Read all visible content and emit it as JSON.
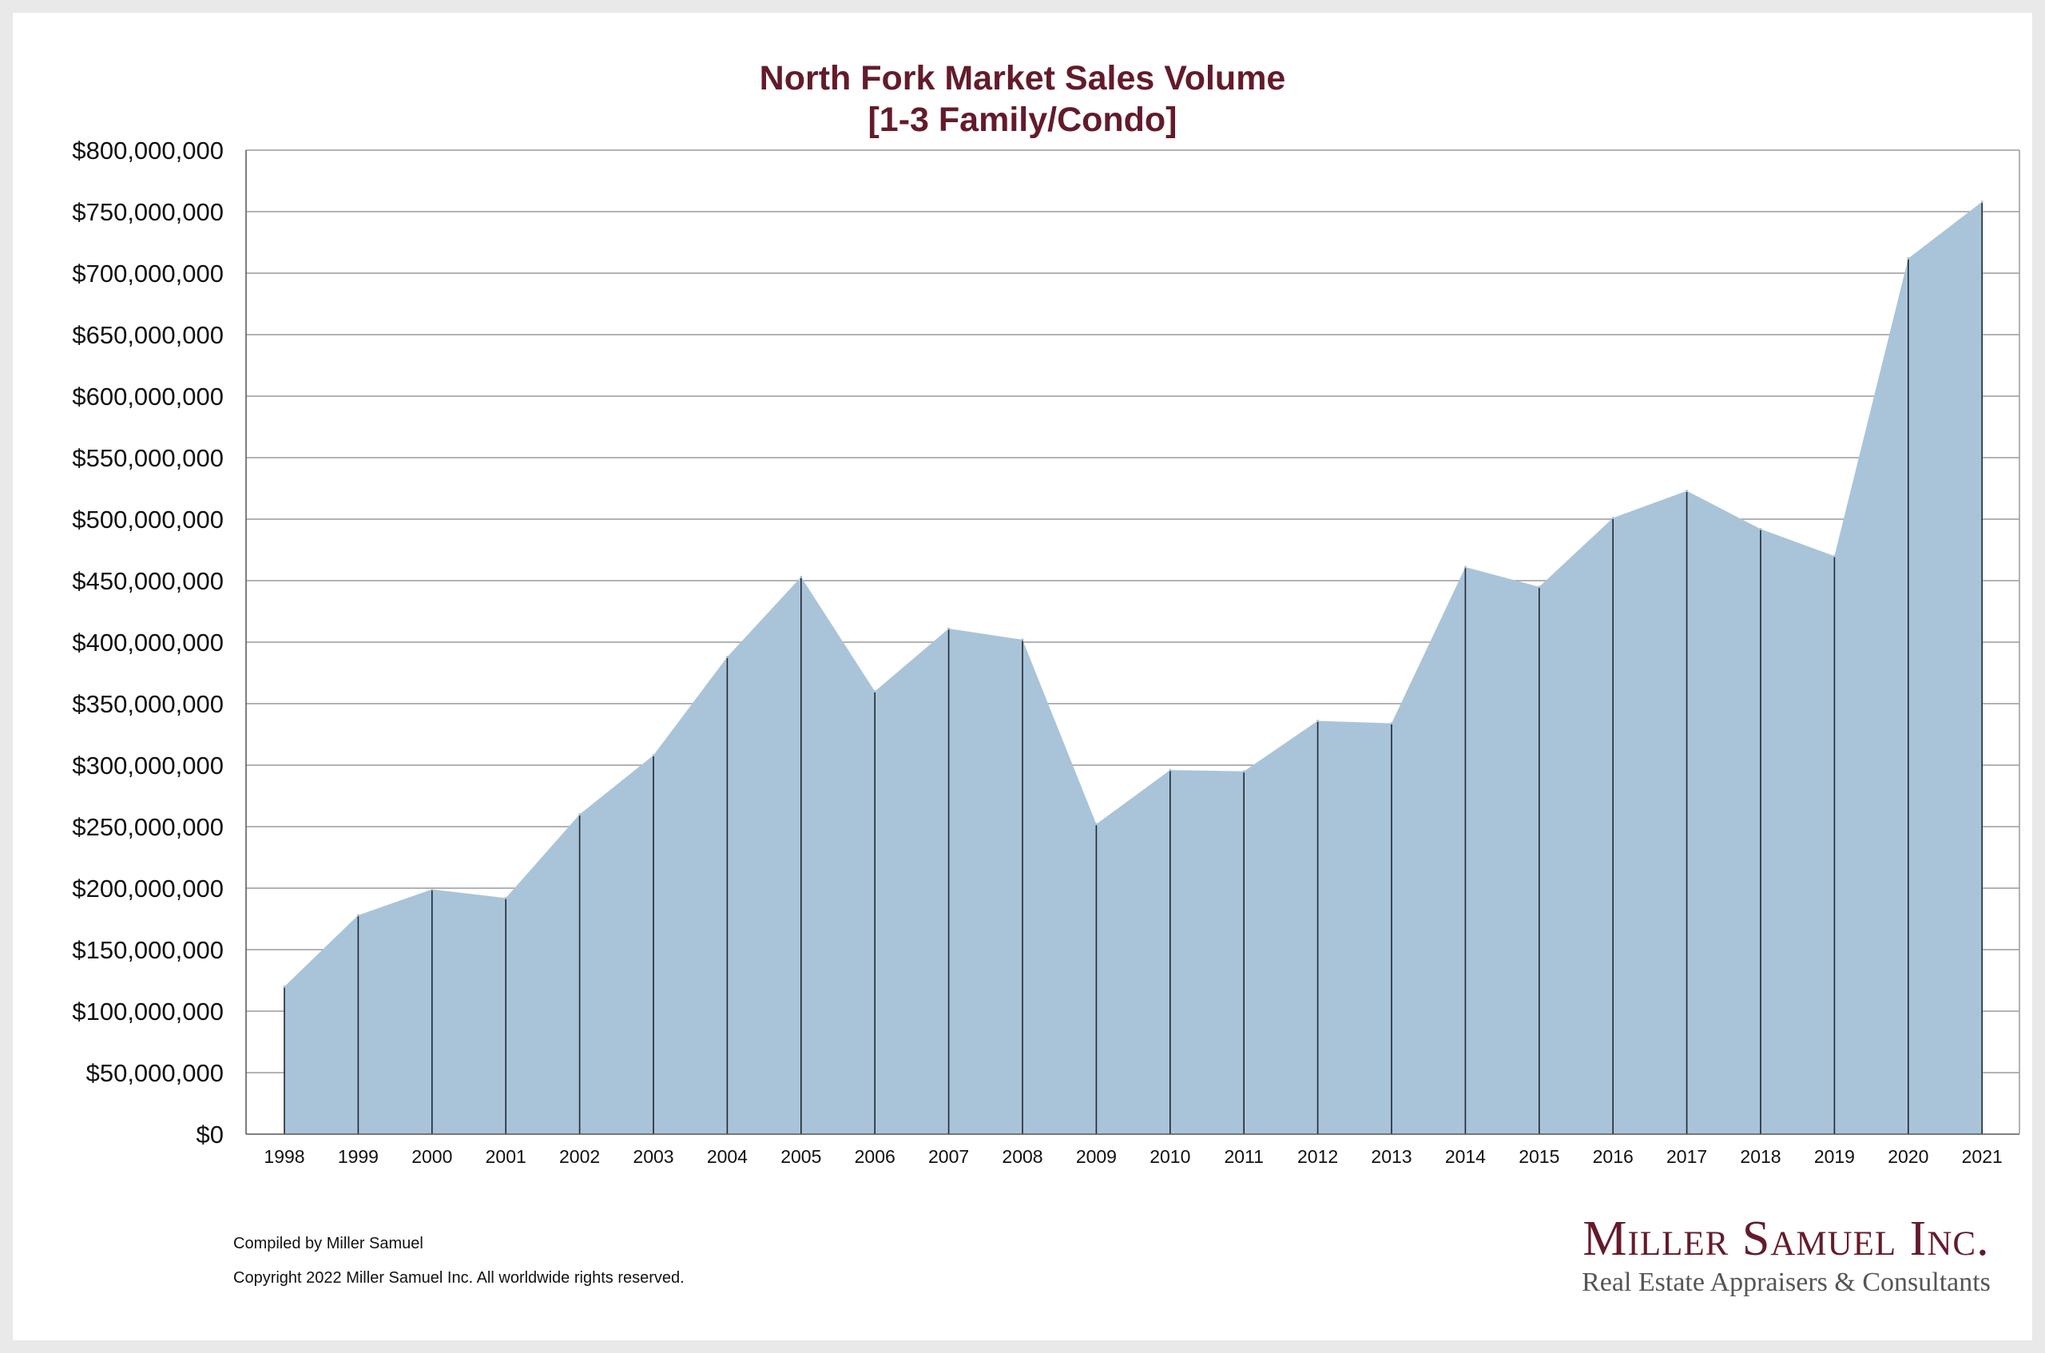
{
  "colors": {
    "title": "#631b2b",
    "fill": "#a9c4d8",
    "grid": "#9a9a9a",
    "drop": "#1f2733",
    "axis": "#555555"
  },
  "chart_data": {
    "type": "area",
    "title_line1": "North Fork Market Sales Volume",
    "title_line2": "[1-3 Family/Condo]",
    "xlabel": "",
    "ylabel": "",
    "ylim": [
      0,
      800000000
    ],
    "ytick_step": 50000000,
    "grid": true,
    "legend": "none",
    "categories": [
      "1998",
      "1999",
      "2000",
      "2001",
      "2002",
      "2003",
      "2004",
      "2005",
      "2006",
      "2007",
      "2008",
      "2009",
      "2010",
      "2011",
      "2012",
      "2013",
      "2014",
      "2015",
      "2016",
      "2017",
      "2018",
      "2019",
      "2020",
      "2021"
    ],
    "series": [
      {
        "name": "Sales Volume",
        "values": [
          120000000,
          178000000,
          199000000,
          192000000,
          260000000,
          308000000,
          388000000,
          453000000,
          360000000,
          411000000,
          402000000,
          252000000,
          296000000,
          295000000,
          336000000,
          334000000,
          461000000,
          445000000,
          501000000,
          523000000,
          492000000,
          470000000,
          712000000,
          758000000
        ]
      }
    ],
    "ytick_labels": [
      "$0",
      "$50,000,000",
      "$100,000,000",
      "$150,000,000",
      "$200,000,000",
      "$250,000,000",
      "$300,000,000",
      "$350,000,000",
      "$400,000,000",
      "$450,000,000",
      "$500,000,000",
      "$550,000,000",
      "$600,000,000",
      "$650,000,000",
      "$700,000,000",
      "$750,000,000",
      "$800,000,000"
    ]
  },
  "footer": {
    "compiled": "Compiled by Miller Samuel",
    "copyright": "Copyright 2022 Miller Samuel Inc.  All worldwide rights reserved."
  },
  "brand": {
    "name": "Miller Samuel Inc.",
    "tagline": "Real Estate Appraisers & Consultants"
  }
}
